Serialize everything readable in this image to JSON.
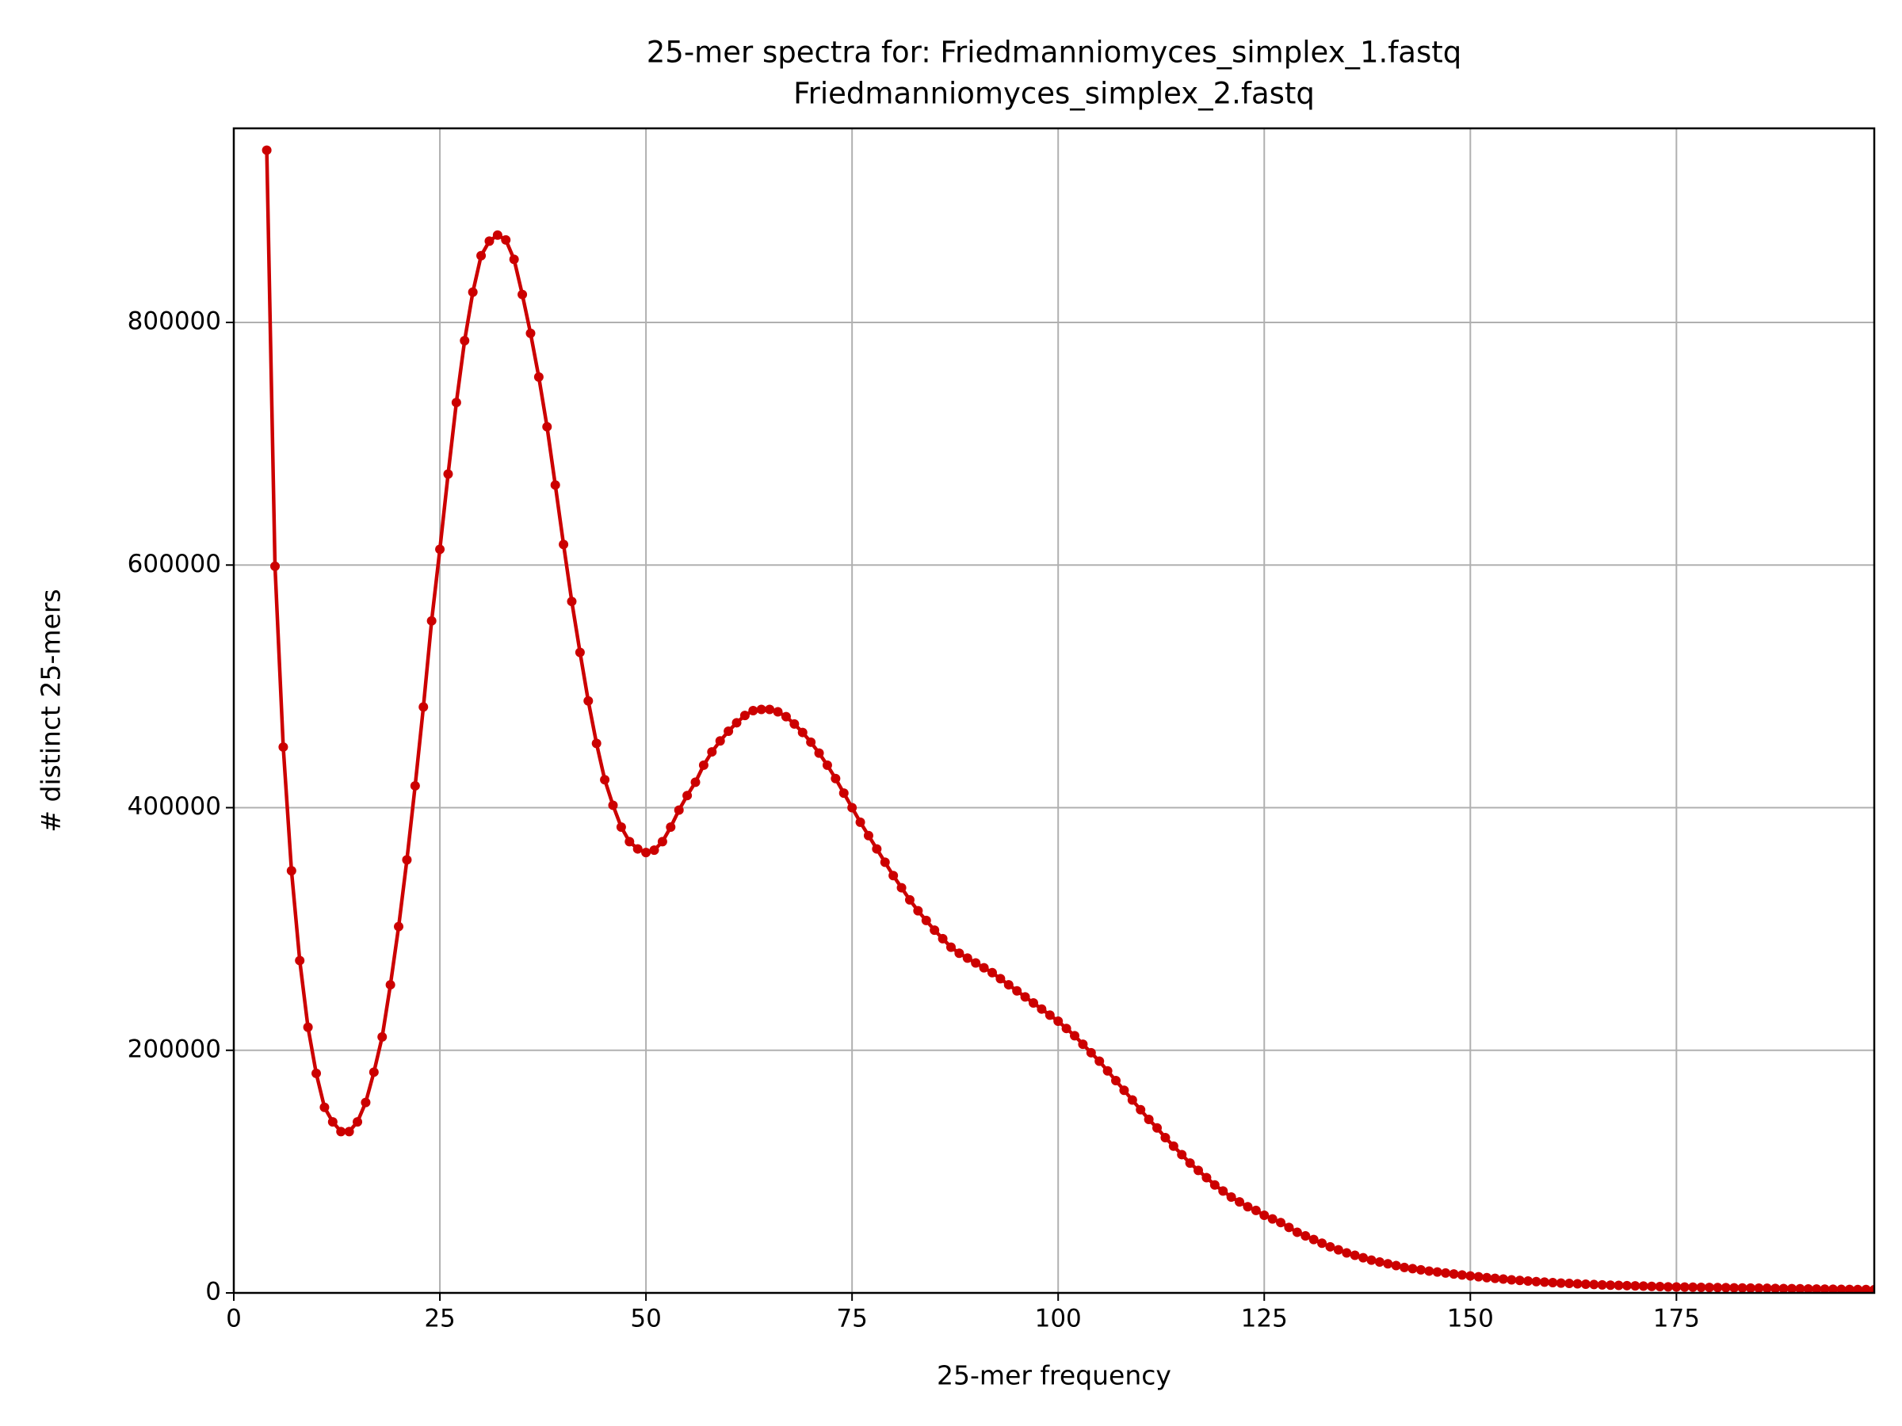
{
  "chart_data": {
    "type": "line",
    "title": [
      "25-mer spectra for: Friedmanniomyces_simplex_1.fastq",
      "Friedmanniomyces_simplex_2.fastq"
    ],
    "xlabel": "25-mer frequency",
    "ylabel": "# distinct 25-mers",
    "xlim": [
      0,
      199
    ],
    "ylim": [
      0,
      960000
    ],
    "xticks": [
      0,
      25,
      50,
      75,
      100,
      125,
      150,
      175
    ],
    "yticks": [
      0,
      200000,
      400000,
      600000,
      800000
    ],
    "grid": true,
    "x": [
      4,
      5,
      6,
      7,
      8,
      9,
      10,
      11,
      12,
      13,
      14,
      15,
      16,
      17,
      18,
      19,
      20,
      21,
      22,
      23,
      24,
      25,
      26,
      27,
      28,
      29,
      30,
      31,
      32,
      33,
      34,
      35,
      36,
      37,
      38,
      39,
      40,
      41,
      42,
      43,
      44,
      45,
      46,
      47,
      48,
      49,
      50,
      51,
      52,
      53,
      54,
      55,
      56,
      57,
      58,
      59,
      60,
      61,
      62,
      63,
      64,
      65,
      66,
      67,
      68,
      69,
      70,
      71,
      72,
      73,
      74,
      75,
      76,
      77,
      78,
      79,
      80,
      81,
      82,
      83,
      84,
      85,
      86,
      87,
      88,
      89,
      90,
      91,
      92,
      93,
      94,
      95,
      96,
      97,
      98,
      99,
      100,
      101,
      102,
      103,
      104,
      105,
      106,
      107,
      108,
      109,
      110,
      111,
      112,
      113,
      114,
      115,
      116,
      117,
      118,
      119,
      120,
      121,
      122,
      123,
      124,
      125,
      126,
      127,
      128,
      129,
      130,
      131,
      132,
      133,
      134,
      135,
      136,
      137,
      138,
      139,
      140,
      141,
      142,
      143,
      144,
      145,
      146,
      147,
      148,
      149,
      150,
      151,
      152,
      153,
      154,
      155,
      156,
      157,
      158,
      159,
      160,
      161,
      162,
      163,
      164,
      165,
      166,
      167,
      168,
      169,
      170,
      171,
      172,
      173,
      174,
      175,
      176,
      177,
      178,
      179,
      180,
      181,
      182,
      183,
      184,
      185,
      186,
      187,
      188,
      189,
      190,
      191,
      192,
      193,
      194,
      195,
      196,
      197,
      198,
      199
    ],
    "series": [
      {
        "color": "#cc0000",
        "values": [
          942000,
          599000,
          450000,
          348000,
          274000,
          219000,
          181000,
          153000,
          141000,
          133000,
          133000,
          141000,
          157000,
          182000,
          211000,
          254000,
          302000,
          357000,
          418000,
          483000,
          554000,
          613000,
          675000,
          734000,
          785000,
          825000,
          855000,
          867000,
          872000,
          868000,
          852000,
          823000,
          791000,
          755000,
          714000,
          666000,
          617000,
          570000,
          528000,
          488000,
          453000,
          423000,
          402000,
          384000,
          372000,
          366000,
          363000,
          365000,
          372000,
          384000,
          398000,
          410000,
          421000,
          435000,
          446000,
          455000,
          463000,
          470000,
          476000,
          480000,
          481000,
          481000,
          479000,
          475000,
          469000,
          462000,
          454000,
          445000,
          435000,
          424000,
          412000,
          400000,
          388000,
          377000,
          366000,
          355000,
          344000,
          334000,
          324000,
          315000,
          307000,
          299000,
          292000,
          285000,
          280000,
          276000,
          272000,
          268000,
          264000,
          259000,
          254000,
          249000,
          244000,
          239000,
          234000,
          229000,
          224000,
          218000,
          212000,
          205000,
          198000,
          191000,
          183000,
          175000,
          167000,
          159000,
          151000,
          143000,
          136000,
          128000,
          121000,
          114000,
          107000,
          101000,
          95000,
          89000,
          84000,
          79000,
          75000,
          71000,
          68000,
          64000,
          61000,
          58000,
          54000,
          50000,
          47000,
          44000,
          41000,
          38000,
          35500,
          33000,
          31000,
          29000,
          27000,
          25500,
          24000,
          22500,
          21000,
          20000,
          19000,
          18000,
          17200,
          16400,
          15600,
          14800,
          14000,
          13300,
          12600,
          12000,
          11400,
          10800,
          10300,
          9800,
          9300,
          8900,
          8500,
          8100,
          7800,
          7500,
          7200,
          6900,
          6600,
          6400,
          6200,
          6000,
          5800,
          5600,
          5400,
          5200,
          5000,
          4900,
          4800,
          4700,
          4600,
          4500,
          4400,
          4300,
          4200,
          4100,
          4000,
          3900,
          3800,
          3700,
          3600,
          3500,
          3400,
          3300,
          3200,
          3100,
          3000,
          2900,
          2850,
          2800,
          2750,
          2700
        ]
      }
    ]
  }
}
